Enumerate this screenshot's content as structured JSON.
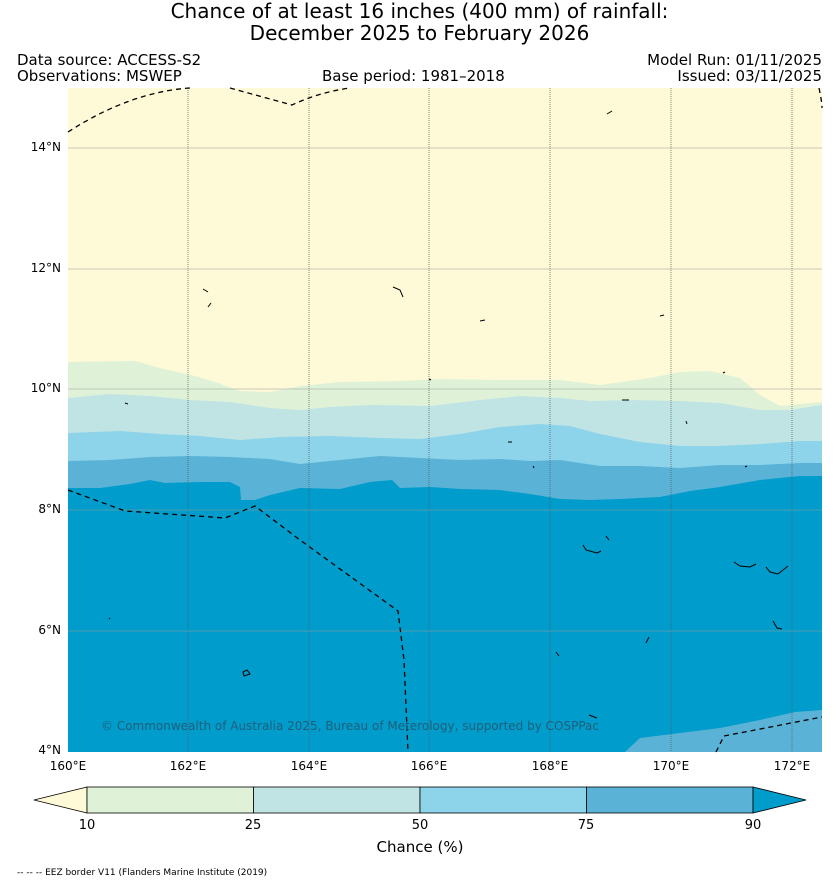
{
  "title": {
    "line1": "Chance of at least 16 inches (400  mm) of rainfall:",
    "line2": "December 2025 to February 2026"
  },
  "meta": {
    "data_source": "Data source: ACCESS-S2",
    "observations": "Observations: MSWEP",
    "base_period": "Base period: 1981–2018",
    "model_run": "Model Run: 01/11/2025",
    "issued": "Issued: 03/11/2025"
  },
  "map": {
    "lat_ticks": [
      "14°N",
      "12°N",
      "10°N",
      "8°N",
      "6°N",
      "4°N"
    ],
    "lon_ticks": [
      "160°E",
      "162°E",
      "164°E",
      "166°E",
      "168°E",
      "170°E",
      "172°E"
    ],
    "copyright": "© Commonwealth of Australia 2025, Bureau of Meterology, supported by COSPPac",
    "lat_range": [
      4,
      15
    ],
    "lon_range": [
      160,
      172.5
    ]
  },
  "colorbar": {
    "label": "Chance (%)",
    "ticks": [
      "10",
      "25",
      "50",
      "75",
      "90"
    ],
    "bins": [
      {
        "range": "<10",
        "color": "#fef9d7"
      },
      {
        "range": "10-25",
        "color": "#dff2d8"
      },
      {
        "range": "25-50",
        "color": "#c0e4e4"
      },
      {
        "range": "50-75",
        "color": "#8dd3ea"
      },
      {
        "range": "75-90",
        "color": "#5ab3d6"
      },
      {
        "range": ">90",
        "color": "#009ccb"
      }
    ]
  },
  "footnote": "-- -- -- EEZ border V11 (Flanders Marine Institute (2019)"
}
